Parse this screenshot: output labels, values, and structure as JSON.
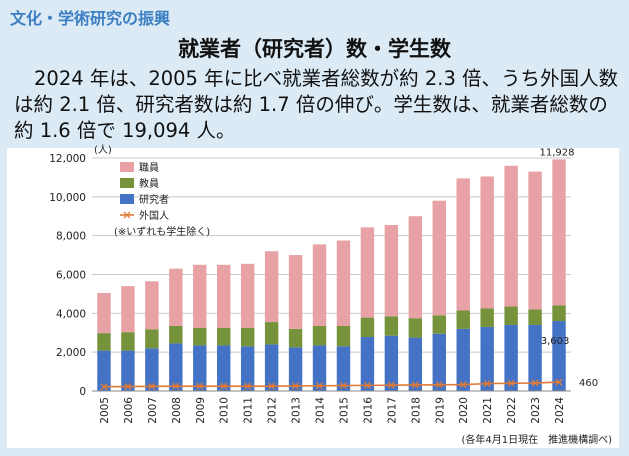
{
  "section_title": "文化・学術研究の振興",
  "summary": {
    "line1": "2024 年は、2005 年に比べ就業者総数が約 2.3 倍、うち",
    "line2": "外国人数は約 2.1 倍、研究者数は約 1.7 倍の伸び。学生数",
    "line3": "は、就業者総数の約 1.6 倍で 19,094 人。"
  },
  "source_note": "(各年4月1日現在　推進機構調べ)",
  "colors": {
    "staff": "#e8a1a4",
    "faculty": "#76933c",
    "researchers": "#4472c4",
    "foreigners": "#e07a36",
    "background": "#dbeaf5",
    "panel": "#ffffff",
    "section_title": "#3d7fc2"
  },
  "chart_data": {
    "type": "bar",
    "stacked": true,
    "title": "就業者（研究者）数・学生数",
    "ylabel": "(人)",
    "ylim": [
      0,
      12000
    ],
    "yticks": [
      0,
      2000,
      4000,
      6000,
      8000,
      10000,
      12000
    ],
    "ytick_labels": [
      "0",
      "2,000",
      "4,000",
      "6,000",
      "8,000",
      "10,000",
      "12,000"
    ],
    "categories": [
      "2005",
      "2006",
      "2007",
      "2008",
      "2009",
      "2010",
      "2011",
      "2012",
      "2013",
      "2014",
      "2015",
      "2016",
      "2017",
      "2018",
      "2019",
      "2020",
      "2021",
      "2022",
      "2023",
      "2024"
    ],
    "series": [
      {
        "name": "研究者",
        "values": [
          2080,
          2080,
          2200,
          2450,
          2350,
          2350,
          2300,
          2400,
          2250,
          2350,
          2300,
          2780,
          2850,
          2750,
          2950,
          3200,
          3300,
          3400,
          3400,
          3603
        ]
      },
      {
        "name": "教員",
        "values": [
          900,
          950,
          980,
          900,
          900,
          900,
          950,
          1150,
          950,
          1000,
          1050,
          1000,
          1000,
          1000,
          950,
          950,
          950,
          950,
          800,
          800
        ]
      },
      {
        "name": "職員",
        "values": [
          2070,
          2370,
          2470,
          2950,
          3250,
          3250,
          3300,
          3650,
          3800,
          4200,
          4400,
          4650,
          4700,
          5250,
          5900,
          6800,
          6800,
          7250,
          7100,
          7525
        ]
      },
      {
        "name": "外国人",
        "type": "line",
        "values": [
          220,
          230,
          240,
          250,
          250,
          250,
          250,
          250,
          260,
          270,
          280,
          290,
          300,
          310,
          320,
          330,
          380,
          400,
          410,
          460
        ]
      }
    ],
    "totals_label": {
      "category": "2024",
      "text": "11,928"
    },
    "data_labels": [
      {
        "series": "研究者",
        "category": "2024",
        "text": "3,603"
      },
      {
        "series": "外国人",
        "category": "2024",
        "text": "460"
      }
    ],
    "legend": [
      "職員",
      "教員",
      "研究者",
      "外国人"
    ],
    "legend_note": "(※いずれも学生除く)",
    "legend_position": "top-left",
    "grid": true
  }
}
